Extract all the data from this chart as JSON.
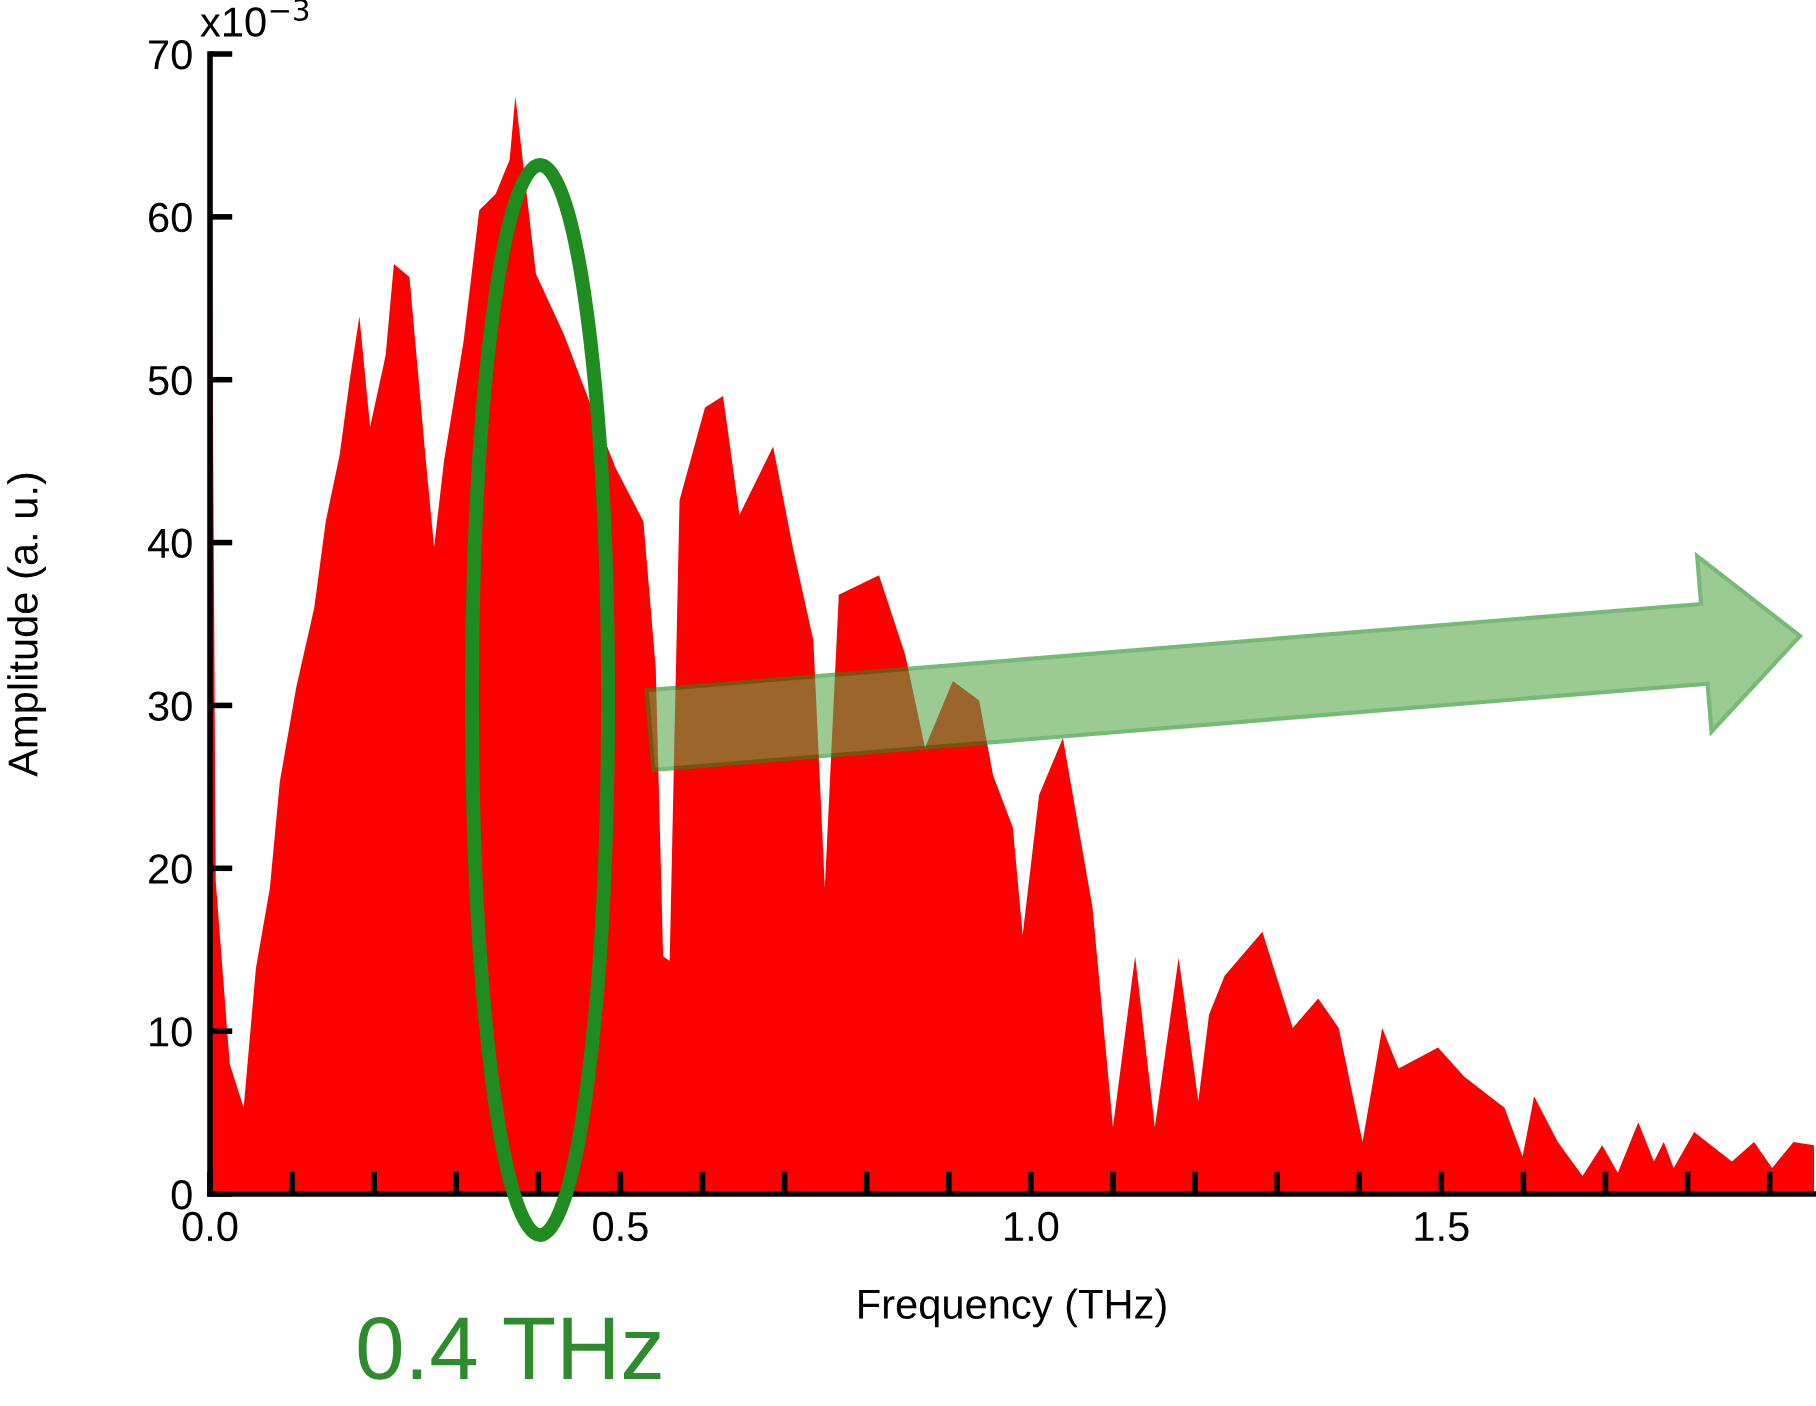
{
  "chart_data": {
    "type": "area",
    "xlabel": "Frequency (THz)",
    "ylabel": "Amplitude (a. u.)",
    "annotations": [
      "0.4 THz",
      "x10$^{−3}$"
    ],
    "x": [
      0.001,
      0.007,
      0.024,
      0.041,
      0.056,
      0.073,
      0.085,
      0.105,
      0.127,
      0.141,
      0.158,
      0.17,
      0.182,
      0.195,
      0.214,
      0.224,
      0.243,
      0.263,
      0.273,
      0.285,
      0.309,
      0.328,
      0.348,
      0.365,
      0.372,
      0.397,
      0.431,
      0.462,
      0.494,
      0.528,
      0.543,
      0.552,
      0.56,
      0.572,
      0.603,
      0.625,
      0.645,
      0.686,
      0.71,
      0.735,
      0.749,
      0.766,
      0.815,
      0.847,
      0.871,
      0.905,
      0.937,
      0.954,
      0.978,
      0.99,
      1.01,
      1.039,
      1.075,
      1.1,
      1.127,
      1.151,
      1.18,
      1.204,
      1.217,
      1.236,
      1.282,
      1.319,
      1.35,
      1.375,
      1.404,
      1.428,
      1.448,
      1.496,
      1.528,
      1.577,
      1.599,
      1.613,
      1.642,
      1.672,
      1.696,
      1.715,
      1.74,
      1.759,
      1.771,
      1.783,
      1.808,
      1.854,
      1.881,
      1.903,
      1.929,
      1.954
    ],
    "values": [
      70,
      19.2,
      8,
      5.3,
      13.9,
      18.8,
      25.3,
      31.1,
      36,
      41.3,
      45.4,
      49.9,
      53.9,
      47.1,
      51.5,
      57.1,
      56.3,
      45,
      39.7,
      45,
      52.4,
      60.4,
      61.4,
      63.5,
      67.4,
      56.5,
      52.8,
      48.7,
      44.6,
      41.3,
      32.3,
      14.6,
      14.3,
      42.6,
      48.3,
      49,
      41.7,
      45.9,
      39.7,
      34,
      18.8,
      36.8,
      38,
      33.1,
      27.4,
      31.5,
      30.3,
      25.7,
      22.5,
      15.9,
      24.5,
      28,
      17.6,
      4.1,
      14.6,
      4.1,
      14.5,
      5.7,
      11,
      13.4,
      16.1,
      10.2,
      12,
      10.2,
      3.2,
      10.2,
      7.7,
      9,
      7.2,
      5.3,
      2.3,
      6,
      3.2,
      1.1,
      3,
      1.3,
      4.4,
      2,
      3.2,
      1.6,
      3.8,
      2,
      3.2,
      1.6,
      3.2,
      3
    ],
    "color": "#ff0000",
    "xlim": [
      0,
      1.954
    ],
    "xticks": [
      {
        "value": 0,
        "label": "0.0"
      },
      {
        "value": 0.1,
        "label": null
      },
      {
        "value": 0.2,
        "label": null
      },
      {
        "value": 0.3,
        "label": null
      },
      {
        "value": 0.4,
        "label": null
      },
      0.5,
      {
        "value": 0.6,
        "label": null
      },
      {
        "value": 0.7,
        "label": null
      },
      {
        "value": 0.8,
        "label": null
      },
      {
        "value": 0.9,
        "label": null
      },
      {
        "value": 1,
        "label": "1.0"
      },
      {
        "value": 1.1,
        "label": null
      },
      {
        "value": 1.2,
        "label": null
      },
      {
        "value": 1.3,
        "label": null
      },
      {
        "value": 1.4,
        "label": null
      },
      1.5,
      {
        "value": 1.6,
        "label": null
      },
      {
        "value": 1.7,
        "label": null
      },
      {
        "value": 1.8,
        "label": null
      },
      {
        "value": 1.9,
        "label": null
      }
    ],
    "ylim": [
      0,
      70
    ],
    "yticks": [
      0,
      10,
      20,
      30,
      40,
      50,
      60,
      70
    ],
    "grid": false,
    "legend": false
  }
}
